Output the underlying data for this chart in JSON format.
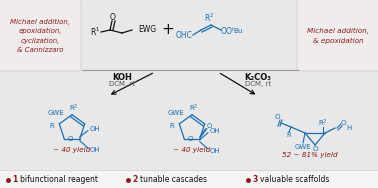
{
  "bg_color": "#e8e8e8",
  "panel_color": "#e8e8e8",
  "box_color": "#f0ecec",
  "dark_red": "#8b1a1a",
  "blue": "#1a6eb5",
  "black": "#111111",
  "gray_line": "#aaaaaa",
  "left_box_text": "Michael addition,\nepoxidation,\ncyclization,\n& Cannizzaro",
  "right_box_text": "Michael addition,\n& epoxidation",
  "arrow1_label1": "KOH",
  "arrow1_label2": "DCM, rt",
  "arrow2_label1": "K₂CO₃",
  "arrow2_label2": "DCM, rt",
  "product1_yield": "~ 40 yield",
  "product2_yield": "~ 40 yield",
  "product3_yield": "52 ~ 81% yield",
  "fig_width": 3.78,
  "fig_height": 1.88,
  "dpi": 100
}
